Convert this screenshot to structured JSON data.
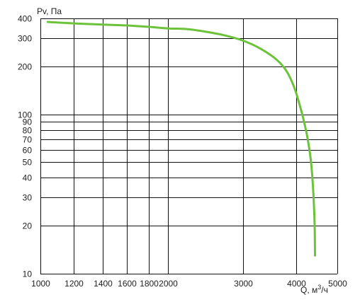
{
  "chart_data": {
    "type": "line",
    "title": "",
    "ylabel": "Pv, Па",
    "xlabel_text": "Q, м",
    "xlabel_sup": "3",
    "xlabel_suffix": "/ч",
    "x_scale": "log",
    "y_scale": "log",
    "xlim": [
      1000,
      5000
    ],
    "ylim": [
      10,
      400
    ],
    "grid": true,
    "x_ticks": [
      {
        "value": 1000,
        "label": "1000"
      },
      {
        "value": 1200,
        "label": "1200"
      },
      {
        "value": 1400,
        "label": "1400"
      },
      {
        "value": 1600,
        "label": "1600"
      },
      {
        "value": 1800,
        "label": "1800"
      },
      {
        "value": 2000,
        "label": "2000"
      },
      {
        "value": 3000,
        "label": "3000"
      },
      {
        "value": 4000,
        "label": "4000"
      },
      {
        "value": 5000,
        "label": "5000"
      }
    ],
    "y_ticks": [
      {
        "value": 10,
        "label": "10"
      },
      {
        "value": 20,
        "label": "20"
      },
      {
        "value": 30,
        "label": "30"
      },
      {
        "value": 40,
        "label": "40"
      },
      {
        "value": 50,
        "label": "50"
      },
      {
        "value": 60,
        "label": "60"
      },
      {
        "value": 70,
        "label": "70"
      },
      {
        "value": 80,
        "label": "80"
      },
      {
        "value": 90,
        "label": "90"
      },
      {
        "value": 100,
        "label": "100"
      },
      {
        "value": 200,
        "label": "200"
      },
      {
        "value": 300,
        "label": "300"
      },
      {
        "value": 400,
        "label": "400"
      }
    ],
    "series": [
      {
        "color": "#6cc33a",
        "points": [
          [
            1040,
            380
          ],
          [
            1200,
            372
          ],
          [
            1400,
            366
          ],
          [
            1600,
            361
          ],
          [
            1800,
            354
          ],
          [
            2000,
            346
          ],
          [
            2200,
            343
          ],
          [
            2400,
            333
          ],
          [
            2700,
            314
          ],
          [
            3000,
            290
          ],
          [
            3300,
            258
          ],
          [
            3600,
            220
          ],
          [
            3800,
            186
          ],
          [
            3950,
            150
          ],
          [
            4050,
            122
          ],
          [
            4150,
            96
          ],
          [
            4250,
            72
          ],
          [
            4330,
            52
          ],
          [
            4380,
            36
          ],
          [
            4410,
            25
          ],
          [
            4425,
            18
          ],
          [
            4430,
            13
          ]
        ]
      }
    ]
  }
}
